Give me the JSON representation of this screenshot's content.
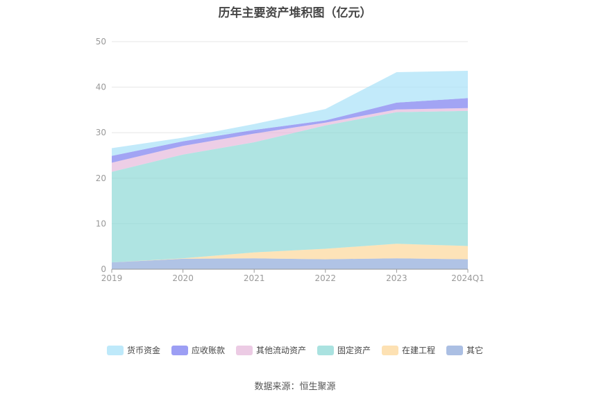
{
  "title": "历年主要资产堆积图（亿元）",
  "source": "数据来源：恒生聚源",
  "chart_data": {
    "type": "area",
    "stacked": true,
    "categories": [
      "2019",
      "2020",
      "2021",
      "2022",
      "2023",
      "2024Q1"
    ],
    "y_ticks": [
      "0",
      "10",
      "20",
      "30",
      "40",
      "50"
    ],
    "ylim": [
      0,
      50
    ],
    "grid": true,
    "legend_position": "bottom",
    "series": [
      {
        "name": "其它",
        "color": "#8fa9da",
        "values": [
          1.5,
          2.3,
          2.4,
          2.2,
          2.4,
          2.2
        ]
      },
      {
        "name": "在建工程",
        "color": "#fcd79a",
        "values": [
          0.0,
          0.1,
          1.3,
          2.3,
          3.2,
          2.9
        ]
      },
      {
        "name": "固定资产",
        "color": "#8dd8d6",
        "values": [
          19.9,
          22.8,
          24.2,
          27.1,
          28.9,
          29.7
        ]
      },
      {
        "name": "其他流动资产",
        "color": "#e6b9db",
        "values": [
          2.0,
          1.9,
          1.9,
          0.6,
          0.6,
          0.6
        ]
      },
      {
        "name": "应收账款",
        "color": "#7b7ef0",
        "values": [
          1.5,
          1.0,
          0.8,
          0.5,
          1.5,
          2.2
        ]
      },
      {
        "name": "货币资金",
        "color": "#a8e1f8",
        "values": [
          1.7,
          0.8,
          1.3,
          2.5,
          6.7,
          6.0
        ]
      }
    ],
    "legend_order": [
      "货币资金",
      "应收账款",
      "其他流动资产",
      "固定资产",
      "在建工程",
      "其它"
    ]
  }
}
